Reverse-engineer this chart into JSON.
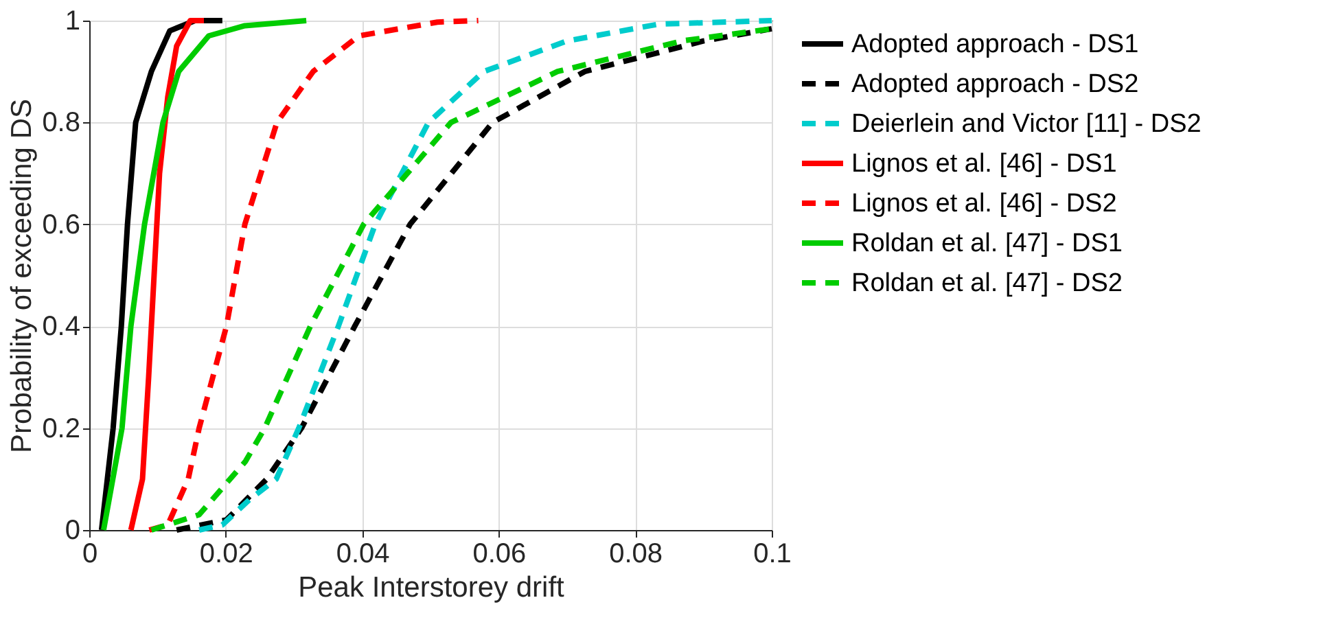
{
  "chart_data": {
    "type": "line",
    "xlabel": "Peak Interstorey drift",
    "ylabel": "Probability of exceeding DS",
    "xlim": [
      0,
      0.1
    ],
    "ylim": [
      0,
      1
    ],
    "xticks": [
      0,
      0.02,
      0.04,
      0.06,
      0.08,
      0.1
    ],
    "yticks": [
      0,
      0.2,
      0.4,
      0.6,
      0.8,
      1
    ],
    "grid": true,
    "legend": "right",
    "marker": "none",
    "series": [
      {
        "name": "Adopted approach - DS1",
        "color": "#000000",
        "line_style": "solid",
        "x": [
          0.0018,
          0.0035,
          0.0047,
          0.0056,
          0.0068,
          0.0091,
          0.0118,
          0.0155,
          0.0195
        ],
        "values": [
          0,
          0.2,
          0.4,
          0.6,
          0.8,
          0.9,
          0.98,
          1,
          1
        ]
      },
      {
        "name": "Adopted approach - DS2",
        "color": "#000000",
        "line_style": "dashed",
        "x": [
          0.0128,
          0.0201,
          0.026,
          0.0311,
          0.0389,
          0.047,
          0.0591,
          0.0726,
          0.09,
          0.1
        ],
        "values": [
          0,
          0.02,
          0.1,
          0.2,
          0.4,
          0.6,
          0.8,
          0.9,
          0.96,
          0.984
        ]
      },
      {
        "name": "Deierlein and Victor [11] - DS2",
        "color": "#00cccc",
        "line_style": "dashed",
        "x": [
          0.0161,
          0.0195,
          0.0235,
          0.0274,
          0.0307,
          0.0365,
          0.0419,
          0.0497,
          0.0578,
          0.07,
          0.0834,
          0.1
        ],
        "values": [
          0,
          0.01,
          0.06,
          0.1,
          0.2,
          0.4,
          0.6,
          0.8,
          0.9,
          0.96,
          0.993,
          1
        ]
      },
      {
        "name": "Lignos et al. [46] - DS1",
        "color": "#ff0000",
        "line_style": "solid",
        "x": [
          0.0061,
          0.0078,
          0.0087,
          0.0095,
          0.0103,
          0.0115,
          0.0128,
          0.0148,
          0.0168
        ],
        "values": [
          0,
          0.1,
          0.3,
          0.5,
          0.7,
          0.85,
          0.95,
          1,
          1
        ]
      },
      {
        "name": "Lignos et al. [46] - DS2",
        "color": "#ff0000",
        "line_style": "dashed",
        "x": [
          0.0088,
          0.0115,
          0.0145,
          0.0161,
          0.0201,
          0.0228,
          0.0275,
          0.0328,
          0.0395,
          0.051,
          0.057
        ],
        "values": [
          0,
          0.01,
          0.1,
          0.2,
          0.4,
          0.6,
          0.8,
          0.9,
          0.97,
          0.997,
          1
        ]
      },
      {
        "name": "Roldan et al. [47] - DS1",
        "color": "#00cc00",
        "line_style": "solid",
        "x": [
          0.0021,
          0.0048,
          0.0061,
          0.0081,
          0.0108,
          0.0131,
          0.0175,
          0.0228,
          0.0318
        ],
        "values": [
          0,
          0.2,
          0.4,
          0.6,
          0.8,
          0.9,
          0.97,
          0.99,
          1
        ]
      },
      {
        "name": "Roldan et al. [47] - DS2",
        "color": "#00cc00",
        "line_style": "dashed",
        "x": [
          0.0091,
          0.0161,
          0.0229,
          0.0257,
          0.0324,
          0.0402,
          0.053,
          0.0686,
          0.0868,
          0.1
        ],
        "values": [
          0,
          0.03,
          0.135,
          0.2,
          0.4,
          0.6,
          0.8,
          0.9,
          0.96,
          0.984
        ]
      }
    ]
  }
}
